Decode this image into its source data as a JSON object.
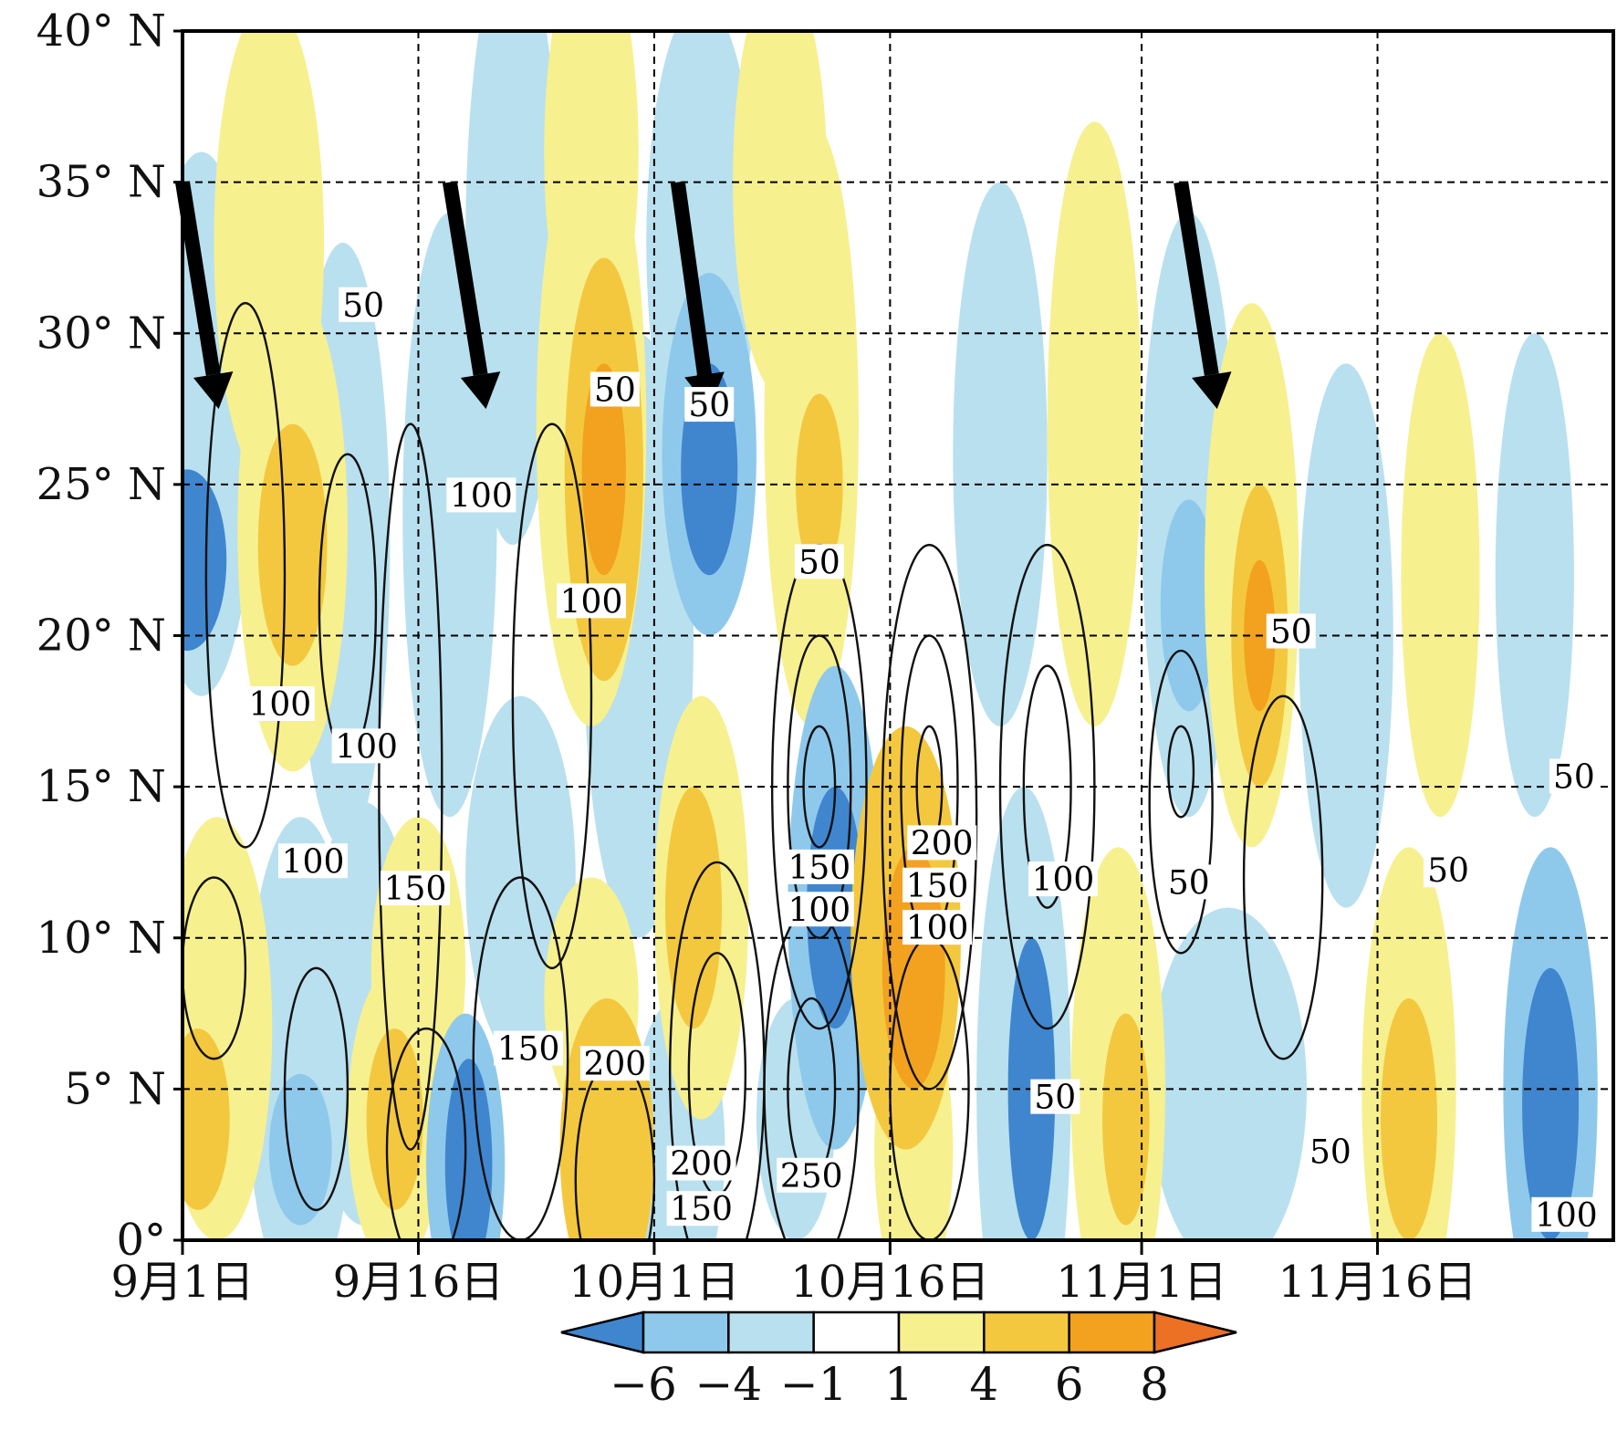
{
  "chart_data": {
    "type": "heatmap",
    "title": "",
    "xlabel": "",
    "ylabel": "",
    "x_axis": {
      "unit": "date",
      "range": [
        "9月1日",
        "11月30日"
      ],
      "ticks": [
        {
          "label": "9月1日",
          "day": 0
        },
        {
          "label": "9月16日",
          "day": 15
        },
        {
          "label": "10月1日",
          "day": 30
        },
        {
          "label": "10月16日",
          "day": 45
        },
        {
          "label": "11月1日",
          "day": 61
        },
        {
          "label": "11月16日",
          "day": 76
        }
      ]
    },
    "y_axis": {
      "unit": "latitude",
      "range": [
        0,
        40
      ],
      "ticks": [
        {
          "label": "0°",
          "value": 0
        },
        {
          "label": "5° N",
          "value": 5
        },
        {
          "label": "10° N",
          "value": 10
        },
        {
          "label": "15° N",
          "value": 15
        },
        {
          "label": "20° N",
          "value": 20
        },
        {
          "label": "25° N",
          "value": 25
        },
        {
          "label": "30° N",
          "value": 30
        },
        {
          "label": "35° N",
          "value": 35
        },
        {
          "label": "40° N",
          "value": 40
        }
      ]
    },
    "grid": "dashed",
    "colorbar": {
      "position": "bottom",
      "levels": [
        -6,
        -4,
        -1,
        1,
        4,
        6,
        8
      ],
      "labels": [
        "−6",
        "−4",
        "−1",
        "1",
        "4",
        "6",
        "8"
      ],
      "colors": [
        "#3f86cf",
        "#8ec9ec",
        "#b9e0ef",
        "#ffffff",
        "#f7f08f",
        "#f4c83e",
        "#f2a21f",
        "#ec7125"
      ],
      "extend": "both"
    },
    "anomaly_cells": [
      {
        "day": 0.3,
        "lat": 22.5,
        "dd": 2.5,
        "dl": 3,
        "level": -6
      },
      {
        "day": 1.2,
        "lat": 27,
        "dd": 3.5,
        "dl": 9,
        "level": -1
      },
      {
        "day": 2.2,
        "lat": 7,
        "dd": 3.5,
        "dl": 7,
        "level": 4
      },
      {
        "day": 1.0,
        "lat": 4,
        "dd": 2,
        "dl": 3,
        "level": 6
      },
      {
        "day": 5.5,
        "lat": 33,
        "dd": 3.5,
        "dl": 8,
        "level": 4
      },
      {
        "day": 7.0,
        "lat": 23.5,
        "dd": 3.5,
        "dl": 8,
        "level": 4
      },
      {
        "day": 7.0,
        "lat": 23,
        "dd": 2.2,
        "dl": 4,
        "level": 6
      },
      {
        "day": 7.5,
        "lat": 6,
        "dd": 3.5,
        "dl": 8,
        "level": -1
      },
      {
        "day": 7.5,
        "lat": 3,
        "dd": 2,
        "dl": 2.5,
        "level": -4
      },
      {
        "day": 10.2,
        "lat": 23,
        "dd": 3,
        "dl": 10,
        "level": -1
      },
      {
        "day": 11.5,
        "lat": 7.5,
        "dd": 3.5,
        "dl": 7,
        "level": -1
      },
      {
        "day": 13.5,
        "lat": 4,
        "dd": 3,
        "dl": 5,
        "level": 4
      },
      {
        "day": 13.5,
        "lat": 4,
        "dd": 1.8,
        "dl": 3,
        "level": 6
      },
      {
        "day": 15.0,
        "lat": 9,
        "dd": 3,
        "dl": 5,
        "level": 4
      },
      {
        "day": 17.0,
        "lat": 24,
        "dd": 3,
        "dl": 10,
        "level": -1
      },
      {
        "day": 18.0,
        "lat": 2.5,
        "dd": 2.5,
        "dl": 5,
        "level": -4
      },
      {
        "day": 18.2,
        "lat": 2.5,
        "dd": 1.5,
        "dl": 3.5,
        "level": -6
      },
      {
        "day": 21.0,
        "lat": 33,
        "dd": 3,
        "dl": 10,
        "level": -1
      },
      {
        "day": 21.5,
        "lat": 12,
        "dd": 3.5,
        "dl": 6,
        "level": -1
      },
      {
        "day": 26.0,
        "lat": 36,
        "dd": 3,
        "dl": 7,
        "level": 4
      },
      {
        "day": 26.0,
        "lat": 27,
        "dd": 3.5,
        "dl": 10,
        "level": 4
      },
      {
        "day": 26.8,
        "lat": 25.5,
        "dd": 2.5,
        "dl": 7,
        "level": 6
      },
      {
        "day": 26.8,
        "lat": 25.5,
        "dd": 1.4,
        "dl": 3.5,
        "level": 8
      },
      {
        "day": 27.0,
        "lat": 3,
        "dd": 3,
        "dl": 5,
        "level": 6
      },
      {
        "day": 26.0,
        "lat": 8,
        "dd": 3,
        "dl": 4,
        "level": 4
      },
      {
        "day": 29.0,
        "lat": 20,
        "dd": 3.5,
        "dl": 10,
        "level": -1
      },
      {
        "day": 31.5,
        "lat": 3,
        "dd": 3,
        "dl": 5,
        "level": -1
      },
      {
        "day": 33.0,
        "lat": 33,
        "dd": 3.5,
        "dl": 8,
        "level": -1
      },
      {
        "day": 33.5,
        "lat": 26,
        "dd": 3,
        "dl": 6,
        "level": -4
      },
      {
        "day": 33.5,
        "lat": 25.5,
        "dd": 1.8,
        "dl": 3.5,
        "level": -6
      },
      {
        "day": 33.0,
        "lat": 11,
        "dd": 3,
        "dl": 7,
        "level": 4
      },
      {
        "day": 32.5,
        "lat": 11,
        "dd": 1.8,
        "dl": 4,
        "level": 6
      },
      {
        "day": 38.0,
        "lat": 35,
        "dd": 3,
        "dl": 7,
        "level": 4
      },
      {
        "day": 40.0,
        "lat": 27,
        "dd": 3,
        "dl": 10,
        "level": 4
      },
      {
        "day": 40.5,
        "lat": 25,
        "dd": 1.5,
        "dl": 3,
        "level": 6
      },
      {
        "day": 41.5,
        "lat": 11,
        "dd": 3,
        "dl": 8,
        "level": -4
      },
      {
        "day": 41.5,
        "lat": 11,
        "dd": 1.8,
        "dl": 4,
        "level": -6
      },
      {
        "day": 39.0,
        "lat": 4,
        "dd": 2.5,
        "dl": 4,
        "level": -1
      },
      {
        "day": 46.0,
        "lat": 10,
        "dd": 3.5,
        "dl": 7,
        "level": 6
      },
      {
        "day": 46.5,
        "lat": 9,
        "dd": 2,
        "dl": 4,
        "level": 8
      },
      {
        "day": 46.5,
        "lat": 3,
        "dd": 2.5,
        "dl": 5,
        "level": 4
      },
      {
        "day": 52.0,
        "lat": 26,
        "dd": 3,
        "dl": 9,
        "level": -1
      },
      {
        "day": 53.5,
        "lat": 5,
        "dd": 3,
        "dl": 10,
        "level": -1
      },
      {
        "day": 54.0,
        "lat": 5,
        "dd": 1.5,
        "dl": 5,
        "level": -6
      },
      {
        "day": 58.0,
        "lat": 27,
        "dd": 3,
        "dl": 10,
        "level": 4
      },
      {
        "day": 59.5,
        "lat": 5,
        "dd": 3,
        "dl": 8,
        "level": 4
      },
      {
        "day": 60.0,
        "lat": 4,
        "dd": 1.5,
        "dl": 3.5,
        "level": 6
      },
      {
        "day": 64.0,
        "lat": 24,
        "dd": 3,
        "dl": 10,
        "level": -1
      },
      {
        "day": 64.0,
        "lat": 21,
        "dd": 1.8,
        "dl": 3.5,
        "level": -4
      },
      {
        "day": 68.0,
        "lat": 22,
        "dd": 3,
        "dl": 9,
        "level": 4
      },
      {
        "day": 68.5,
        "lat": 20,
        "dd": 1.8,
        "dl": 5,
        "level": 6
      },
      {
        "day": 68.5,
        "lat": 20,
        "dd": 1,
        "dl": 2.5,
        "level": 8
      },
      {
        "day": 66.5,
        "lat": 5,
        "dd": 5,
        "dl": 6,
        "level": -1
      },
      {
        "day": 74.0,
        "lat": 20,
        "dd": 3,
        "dl": 9,
        "level": -1
      },
      {
        "day": 78.0,
        "lat": 5,
        "dd": 3,
        "dl": 8,
        "level": 4
      },
      {
        "day": 78.0,
        "lat": 4,
        "dd": 1.8,
        "dl": 4,
        "level": 6
      },
      {
        "day": 80.0,
        "lat": 22,
        "dd": 2.5,
        "dl": 8,
        "level": 4
      },
      {
        "day": 86.0,
        "lat": 22,
        "dd": 2.5,
        "dl": 8,
        "level": -1
      },
      {
        "day": 87.0,
        "lat": 5,
        "dd": 3,
        "dl": 8,
        "level": -4
      },
      {
        "day": 87.0,
        "lat": 4.5,
        "dd": 1.8,
        "dl": 4.5,
        "level": -6
      }
    ],
    "contours": [
      {
        "day": 4.0,
        "lat": 22,
        "dd": 2.5,
        "dl": 9
      },
      {
        "day": 10.5,
        "lat": 21,
        "dd": 1.8,
        "dl": 5
      },
      {
        "day": 14.5,
        "lat": 15,
        "dd": 2,
        "dl": 12
      },
      {
        "day": 2.0,
        "lat": 9,
        "dd": 2,
        "dl": 3
      },
      {
        "day": 8.5,
        "lat": 5,
        "dd": 2,
        "dl": 4
      },
      {
        "day": 15.5,
        "lat": 3,
        "dd": 2.5,
        "dl": 4
      },
      {
        "day": 21.5,
        "lat": 6,
        "dd": 3,
        "dl": 6
      },
      {
        "day": 23.5,
        "lat": 18,
        "dd": 2.5,
        "dl": 9
      },
      {
        "day": 27.5,
        "lat": 2,
        "dd": 2.5,
        "dl": 4
      },
      {
        "day": 34.0,
        "lat": 5.5,
        "dd": 3,
        "dl": 7
      },
      {
        "day": 34.0,
        "lat": 5.5,
        "dd": 1.8,
        "dl": 4
      },
      {
        "day": 40.5,
        "lat": 15,
        "dd": 3,
        "dl": 8
      },
      {
        "day": 40.5,
        "lat": 15,
        "dd": 2,
        "dl": 5
      },
      {
        "day": 40.5,
        "lat": 15,
        "dd": 1,
        "dl": 2
      },
      {
        "day": 40.0,
        "lat": 5,
        "dd": 3,
        "dl": 6
      },
      {
        "day": 40.0,
        "lat": 5,
        "dd": 1.5,
        "dl": 3
      },
      {
        "day": 47.5,
        "lat": 14,
        "dd": 3,
        "dl": 9
      },
      {
        "day": 47.5,
        "lat": 15,
        "dd": 1.8,
        "dl": 5
      },
      {
        "day": 47.5,
        "lat": 15,
        "dd": 0.8,
        "dl": 2
      },
      {
        "day": 47.5,
        "lat": 5,
        "dd": 2.5,
        "dl": 5
      },
      {
        "day": 55.0,
        "lat": 15,
        "dd": 3,
        "dl": 8
      },
      {
        "day": 55.0,
        "lat": 15,
        "dd": 1.5,
        "dl": 4
      },
      {
        "day": 63.5,
        "lat": 14.5,
        "dd": 2,
        "dl": 5
      },
      {
        "day": 63.5,
        "lat": 15.5,
        "dd": 0.8,
        "dl": 1.5
      },
      {
        "day": 70.0,
        "lat": 12,
        "dd": 2.5,
        "dl": 6
      }
    ],
    "contour_labels": [
      {
        "text": "50",
        "day": 11.5,
        "lat": 30.8
      },
      {
        "text": "50",
        "day": 27.5,
        "lat": 28.0
      },
      {
        "text": "50",
        "day": 33.5,
        "lat": 27.5
      },
      {
        "text": "100",
        "day": 19.0,
        "lat": 24.5
      },
      {
        "text": "100",
        "day": 26.0,
        "lat": 21.0
      },
      {
        "text": "50",
        "day": 40.5,
        "lat": 22.3
      },
      {
        "text": "100",
        "day": 6.2,
        "lat": 17.6
      },
      {
        "text": "100",
        "day": 11.7,
        "lat": 16.2
      },
      {
        "text": "50",
        "day": 70.5,
        "lat": 20.0
      },
      {
        "text": "50",
        "day": 88.5,
        "lat": 15.2
      },
      {
        "text": "100",
        "day": 8.3,
        "lat": 12.4
      },
      {
        "text": "150",
        "day": 14.8,
        "lat": 11.5
      },
      {
        "text": "200",
        "day": 48.3,
        "lat": 13.0
      },
      {
        "text": "150",
        "day": 40.5,
        "lat": 12.2
      },
      {
        "text": "150",
        "day": 48.0,
        "lat": 11.6
      },
      {
        "text": "100",
        "day": 56.0,
        "lat": 11.8
      },
      {
        "text": "50",
        "day": 64.0,
        "lat": 11.7
      },
      {
        "text": "50",
        "day": 80.5,
        "lat": 12.1
      },
      {
        "text": "100",
        "day": 40.5,
        "lat": 10.8
      },
      {
        "text": "100",
        "day": 48.0,
        "lat": 10.2
      },
      {
        "text": "150",
        "day": 22.0,
        "lat": 6.2
      },
      {
        "text": "200",
        "day": 27.5,
        "lat": 5.7
      },
      {
        "text": "50",
        "day": 55.5,
        "lat": 4.6
      },
      {
        "text": "50",
        "day": 73.0,
        "lat": 2.8
      },
      {
        "text": "200",
        "day": 33.0,
        "lat": 2.4
      },
      {
        "text": "250",
        "day": 40.0,
        "lat": 2.0
      },
      {
        "text": "150",
        "day": 33.0,
        "lat": 0.9
      },
      {
        "text": "100",
        "day": 88.0,
        "lat": 0.7
      }
    ],
    "arrows": [
      {
        "day1": 0.0,
        "lat1": 35.0,
        "day2": 2.3,
        "lat2": 27.5
      },
      {
        "day1": 17.0,
        "lat1": 35.0,
        "day2": 19.3,
        "lat2": 27.5
      },
      {
        "day1": 31.5,
        "lat1": 35.0,
        "day2": 33.5,
        "lat2": 27.5
      },
      {
        "day1": 63.5,
        "lat1": 35.0,
        "day2": 65.8,
        "lat2": 27.5
      }
    ]
  }
}
